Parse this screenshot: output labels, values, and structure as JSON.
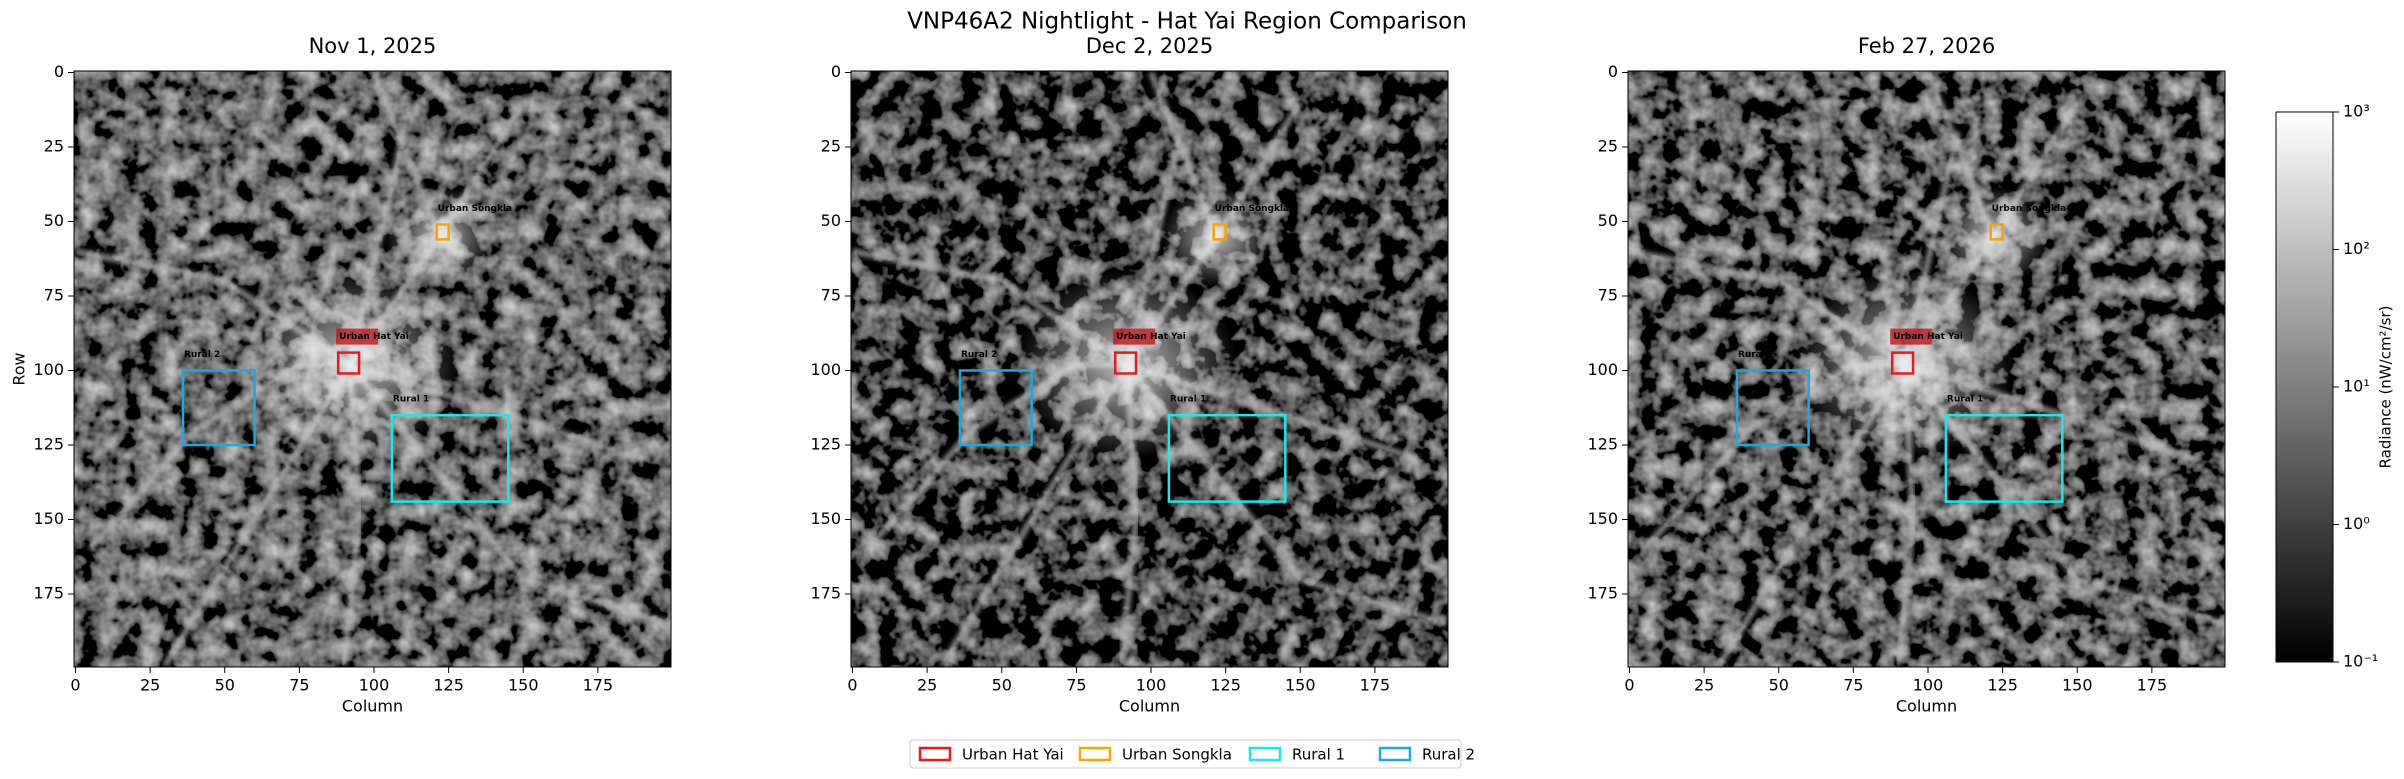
{
  "title": "VNP46A2 Nightlight - Hat Yai Region Comparison",
  "chart_data": [
    {
      "type": "heatmap",
      "title": "Nov 1, 2025",
      "xlabel": "Column",
      "ylabel": "Row",
      "xlim": [
        -0.5,
        199.5
      ],
      "ylim": [
        199.5,
        -0.5
      ],
      "xticks": [
        0,
        25,
        50,
        75,
        100,
        125,
        150,
        175
      ],
      "yticks": [
        0,
        25,
        50,
        75,
        100,
        125,
        150,
        175
      ]
    },
    {
      "type": "heatmap",
      "title": "Dec 2, 2025",
      "xlabel": "Column",
      "xlim": [
        -0.5,
        199.5
      ],
      "ylim": [
        199.5,
        -0.5
      ],
      "xticks": [
        0,
        25,
        50,
        75,
        100,
        125,
        150,
        175
      ],
      "yticks": [
        0,
        25,
        50,
        75,
        100,
        125,
        150,
        175
      ]
    },
    {
      "type": "heatmap",
      "title": "Feb 27, 2026",
      "xlabel": "Column",
      "xlim": [
        -0.5,
        199.5
      ],
      "ylim": [
        199.5,
        -0.5
      ],
      "xticks": [
        0,
        25,
        50,
        75,
        100,
        125,
        150,
        175
      ],
      "yticks": [
        0,
        25,
        50,
        75,
        100,
        125,
        150,
        175
      ]
    }
  ],
  "regions": [
    {
      "name": "Urban Hat Yai",
      "color": "#e8191c",
      "x0": 88,
      "x1": 95,
      "y0": 94,
      "y1": 101
    },
    {
      "name": "Urban Songkla",
      "color": "#f5a400",
      "x0": 121,
      "x1": 125,
      "y0": 51,
      "y1": 56
    },
    {
      "name": "Rural 1",
      "color": "#19e8ec",
      "x0": 106,
      "x1": 145,
      "y0": 115,
      "y1": 144
    },
    {
      "name": "Rural 2",
      "color": "#1aa9e0",
      "x0": 36,
      "x1": 60,
      "y0": 100,
      "y1": 125
    }
  ],
  "colorbar": {
    "label": "Radiance (nW/cm²/sr)",
    "log": true,
    "lim": [
      0.1,
      1000
    ],
    "ticks": [
      {
        "value": 0.1,
        "label": "10⁻¹"
      },
      {
        "value": 1,
        "label": "10⁰"
      },
      {
        "value": 10,
        "label": "10¹"
      },
      {
        "value": 100,
        "label": "10²"
      },
      {
        "value": 1000,
        "label": "10³"
      }
    ]
  }
}
